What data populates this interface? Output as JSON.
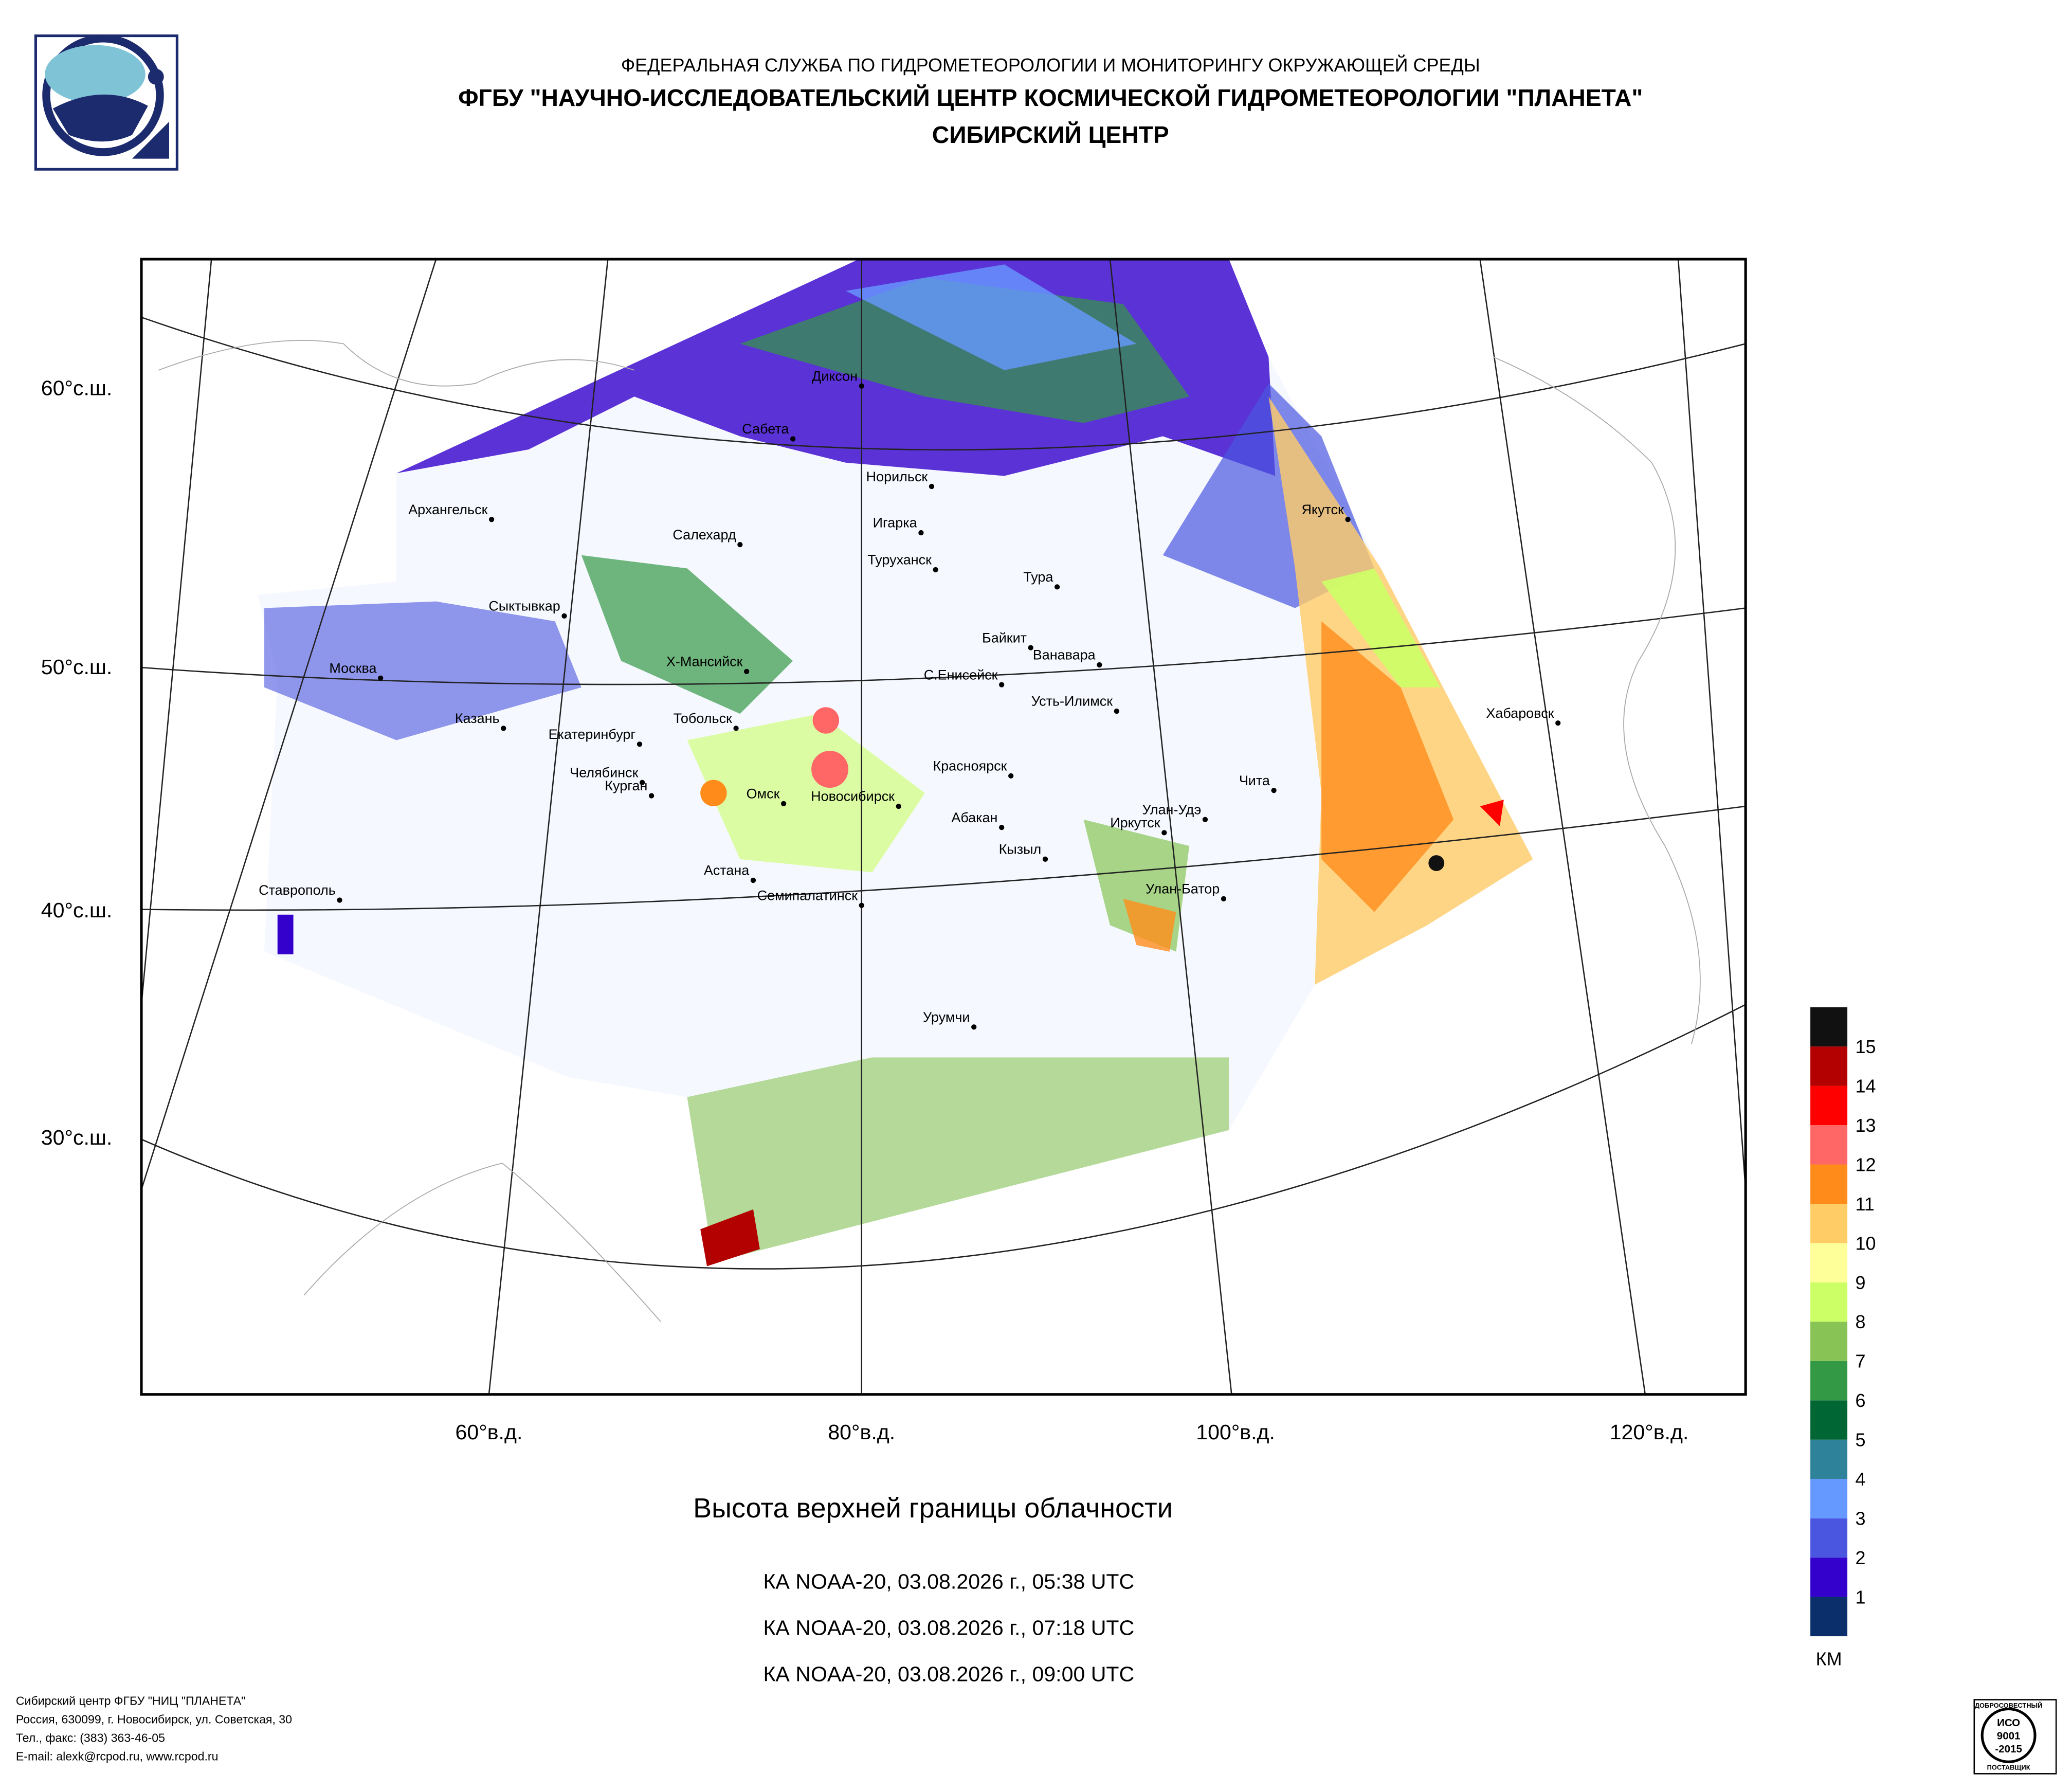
{
  "header": {
    "line1": "ФЕДЕРАЛЬНАЯ СЛУЖБА ПО ГИДРОМЕТЕОРОЛОГИИ И МОНИТОРИНГУ ОКРУЖАЮЩЕЙ СРЕДЫ",
    "line2": "ФГБУ \"НАУЧНО-ИССЛЕДОВАТЕЛЬСКИЙ ЦЕНТР КОСМИЧЕСКОЙ ГИДРОМЕТЕОРОЛОГИИ \"ПЛАНЕТА\"",
    "line3": "СИБИРСКИЙ ЦЕНТР"
  },
  "map": {
    "cities": [
      "Диксон",
      "Сабета",
      "Норильск",
      "Игарка",
      "Архангельск",
      "Салехард",
      "Туруханск",
      "Тура",
      "Сыктывкар",
      "Байкит",
      "Ванавара",
      "Москва",
      "Х-Мансийск",
      "С.Енисейск",
      "Усть-Илимск",
      "Казань",
      "Тобольск",
      "Екатеринбург",
      "Красноярск",
      "Челябинск",
      "Курган",
      "Омск",
      "Новосибирск",
      "Чита",
      "Улан-Удэ",
      "Абакан",
      "Иркутск",
      "Кызыл",
      "Астана",
      "Семипалатинск",
      "Улан-Батор",
      "Ставрополь",
      "Урумчи",
      "Якутск",
      "Хабаровск"
    ],
    "lat_labels": [
      "60°с.ш.",
      "50°с.ш.",
      "40°с.ш.",
      "30°с.ш."
    ],
    "lon_labels": [
      "60°в.д.",
      "80°в.д.",
      "100°в.д.",
      "120°в.д."
    ]
  },
  "legend": {
    "colors": [
      "#0b2f6b",
      "#3300cc",
      "#4a55e0",
      "#6699ff",
      "#2e8299",
      "#006633",
      "#339944",
      "#88c455",
      "#ccff66",
      "#ffff99",
      "#ffcc66",
      "#ff8c1a",
      "#ff6666",
      "#ff0000",
      "#b30000",
      "#111111"
    ],
    "labels": [
      1,
      2,
      3,
      4,
      5,
      6,
      7,
      8,
      9,
      10,
      11,
      12,
      13,
      14,
      15
    ],
    "unit": "КМ"
  },
  "title": "Высота верхней границы облачности",
  "passes": [
    "КА NOAA-20, 03.08.2026 г., 05:38 UTC",
    "КА NOAA-20, 03.08.2026 г., 07:18 UTC",
    "КА NOAA-20, 03.08.2026 г., 09:00 UTC"
  ],
  "footer": [
    "Сибирский центр ФГБУ \"НИЦ \"ПЛАНЕТА\"",
    "Россия, 630099, г. Новосибирск, ул. Советская, 30",
    "Тел., факс: (383) 363-46-05",
    "E-mail: alexk@rcpod.ru, www.rcpod.ru"
  ],
  "certificate": [
    "ДОБРОСОВЕСТНЫЙ",
    "ИСО",
    "9001",
    "-2015",
    "ПОСТАВЩИК"
  ]
}
